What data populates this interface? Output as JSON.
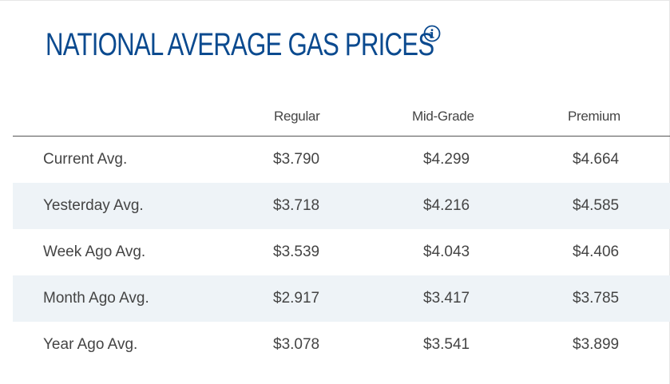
{
  "header": {
    "title": "NATIONAL AVERAGE GAS PRICES",
    "info_icon": "info-circle-icon"
  },
  "colors": {
    "title": "#0b4a8f",
    "row_shade": "#eef3f7",
    "text": "#444444"
  },
  "table": {
    "columns": [
      "Regular",
      "Mid-Grade",
      "Premium"
    ],
    "rows": [
      {
        "label": "Current Avg.",
        "values": [
          "$3.790",
          "$4.299",
          "$4.664"
        ]
      },
      {
        "label": "Yesterday Avg.",
        "values": [
          "$3.718",
          "$4.216",
          "$4.585"
        ]
      },
      {
        "label": "Week Ago Avg.",
        "values": [
          "$3.539",
          "$4.043",
          "$4.406"
        ]
      },
      {
        "label": "Month Ago Avg.",
        "values": [
          "$2.917",
          "$3.417",
          "$3.785"
        ]
      },
      {
        "label": "Year Ago Avg.",
        "values": [
          "$3.078",
          "$3.541",
          "$3.899"
        ]
      }
    ]
  }
}
